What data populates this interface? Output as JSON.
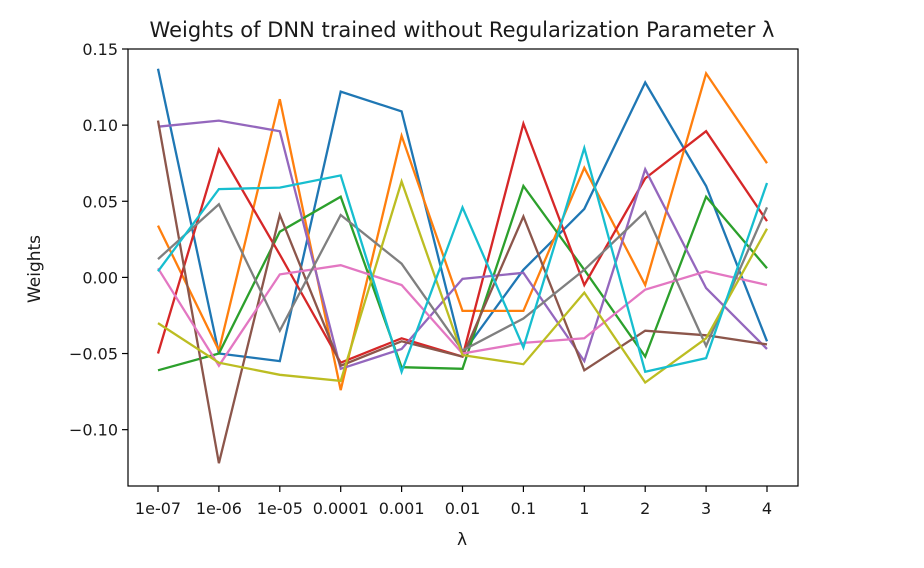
{
  "chart_data": {
    "type": "line",
    "title": "Weights of DNN trained without Regularization Parameter λ",
    "xlabel": "λ",
    "ylabel": "Weights",
    "categories": [
      "1e-07",
      "1e-06",
      "1e-05",
      "0.0001",
      "0.001",
      "0.01",
      "0.1",
      "1",
      "2",
      "3",
      "4"
    ],
    "ylim": [
      -0.137,
      0.15
    ],
    "yticks": [
      -0.1,
      -0.05,
      0.0,
      0.05,
      0.1,
      0.15
    ],
    "ytick_labels": [
      "−0.10",
      "−0.05",
      "0.00",
      "0.05",
      "0.10",
      "0.15"
    ],
    "grid": false,
    "series": [
      {
        "color": "#1f77b4",
        "values": [
          0.137,
          -0.05,
          -0.055,
          0.122,
          0.109,
          -0.05,
          0.005,
          0.045,
          0.128,
          0.06,
          -0.042
        ]
      },
      {
        "color": "#ff7f0e",
        "values": [
          0.034,
          -0.048,
          0.117,
          -0.074,
          0.093,
          -0.022,
          -0.022,
          0.072,
          -0.005,
          0.134,
          0.075
        ]
      },
      {
        "color": "#2ca02c",
        "values": [
          -0.061,
          -0.05,
          0.03,
          0.053,
          -0.059,
          -0.06,
          0.06,
          0.005,
          -0.052,
          0.053,
          0.006
        ]
      },
      {
        "color": "#d62728",
        "values": [
          -0.05,
          0.084,
          0.015,
          -0.056,
          -0.04,
          -0.052,
          0.101,
          -0.005,
          0.065,
          0.096,
          0.037
        ]
      },
      {
        "color": "#9467bd",
        "values": [
          0.099,
          0.103,
          0.096,
          -0.06,
          -0.047,
          -0.001,
          0.003,
          -0.055,
          0.071,
          -0.007,
          -0.047
        ]
      },
      {
        "color": "#8c564b",
        "values": [
          0.103,
          -0.122,
          0.041,
          -0.058,
          -0.042,
          -0.052,
          0.04,
          -0.061,
          -0.035,
          -0.038,
          -0.044
        ]
      },
      {
        "color": "#e377c2",
        "values": [
          0.006,
          -0.058,
          0.002,
          0.008,
          -0.005,
          -0.05,
          -0.043,
          -0.04,
          -0.008,
          0.004,
          -0.005
        ]
      },
      {
        "color": "#7f7f7f",
        "values": [
          0.012,
          0.048,
          -0.035,
          0.041,
          0.009,
          -0.048,
          -0.027,
          0.005,
          0.043,
          -0.045,
          0.046
        ]
      },
      {
        "color": "#bcbd22",
        "values": [
          -0.03,
          -0.056,
          -0.064,
          -0.068,
          0.063,
          -0.051,
          -0.057,
          -0.01,
          -0.069,
          -0.04,
          0.032
        ]
      },
      {
        "color": "#17becf",
        "values": [
          0.004,
          0.058,
          0.059,
          0.067,
          -0.062,
          0.046,
          -0.046,
          0.085,
          -0.062,
          -0.053,
          0.062
        ]
      }
    ]
  }
}
